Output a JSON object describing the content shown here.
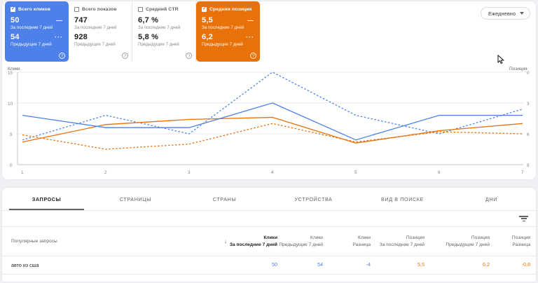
{
  "colors": {
    "accent_blue": "#4d80e8",
    "accent_orange": "#e8710a",
    "text_gray": "#5f6368"
  },
  "cards": [
    {
      "label": "Всего кликов",
      "checked": true,
      "value": "50",
      "value_period": "За последние 7 дней",
      "value2": "54",
      "value2_period": "Предыдущие 7 дней",
      "solid_indicator": "—",
      "dotted_indicator": "···",
      "help": "?"
    },
    {
      "label": "Всего показов",
      "checked": false,
      "value": "747",
      "value_period": "За последние 7 дней",
      "value2": "928",
      "value2_period": "Предыдущие 7 дней",
      "help": "?"
    },
    {
      "label": "Средний CTR",
      "checked": false,
      "value": "6,7 %",
      "value_period": "За последние 7 дней",
      "value2": "5,8 %",
      "value2_period": "Предыдущие 7 дней",
      "help": "?"
    },
    {
      "label": "Средняя позиция",
      "checked": true,
      "value": "5,5",
      "value_period": "За последние 7 дней",
      "value2": "6,2",
      "value2_period": "Предыдущие 7 дней",
      "solid_indicator": "—",
      "dotted_indicator": "···",
      "help": "?"
    }
  ],
  "period_selector": {
    "label": "Ежедневно"
  },
  "chart_data": {
    "type": "line",
    "x": [
      1,
      2,
      3,
      4,
      5,
      6,
      7
    ],
    "left_axis": {
      "title": "Клики",
      "ticks": [
        "15",
        "10",
        "5",
        "0"
      ],
      "range": [
        0,
        15
      ]
    },
    "right_axis": {
      "title": "Позиция",
      "ticks": [
        "0",
        "3",
        "6",
        "9"
      ],
      "range": [
        0,
        9
      ],
      "inverted": true
    },
    "series": [
      {
        "id": "clicks_last",
        "name": "Клики — За последние 7 дней",
        "axis": "left",
        "dashed": false,
        "color": "#4d80e8",
        "values": [
          8,
          6,
          6,
          10,
          4,
          8,
          8
        ]
      },
      {
        "id": "clicks_prev",
        "name": "Клики — Предыдущие 7 дней",
        "axis": "left",
        "dashed": true,
        "color": "#4d80e8",
        "values": [
          4,
          8,
          5,
          15,
          8,
          5,
          9
        ]
      },
      {
        "id": "position_last",
        "name": "Позиция — За последние 7 дней",
        "axis": "right",
        "dashed": false,
        "color": "#e8710a",
        "values": [
          6.8,
          5.1,
          4.6,
          4.4,
          6.9,
          5.7,
          5.0
        ]
      },
      {
        "id": "position_prev",
        "name": "Позиция — Предыдущие 7 дней",
        "axis": "right",
        "dashed": true,
        "color": "#e8710a",
        "values": [
          6.1,
          7.5,
          7.0,
          5.0,
          6.8,
          5.8,
          6.0
        ]
      }
    ],
    "grid": true
  },
  "tabs": {
    "items": [
      {
        "label": "ЗАПРОСЫ",
        "active": true
      },
      {
        "label": "СТРАНИЦЫ",
        "active": false
      },
      {
        "label": "СТРАНЫ",
        "active": false
      },
      {
        "label": "УСТРОЙСТВА",
        "active": false
      },
      {
        "label": "ВИД В ПОИСКЕ",
        "active": false
      },
      {
        "label": "ДНИ",
        "active": false
      }
    ]
  },
  "table": {
    "first_column_header": "Популярные запросы",
    "columns": [
      {
        "group": "Клики",
        "sub": "За последние 7 дней",
        "sorted": true
      },
      {
        "group": "Клики",
        "sub": "Предыдущие 7 дней"
      },
      {
        "group": "Клики",
        "sub": "Разница"
      },
      {
        "group": "Позиция",
        "sub": "За последние 7 дней"
      },
      {
        "group": "Позиция",
        "sub": "Предыдущие 7 дней"
      },
      {
        "group": "Позиция",
        "sub": "Разница"
      }
    ],
    "rows": [
      {
        "query": "авто из сша",
        "values": [
          "50",
          "54",
          "-4",
          "5,5",
          "6,2",
          "-0,8"
        ]
      }
    ]
  }
}
